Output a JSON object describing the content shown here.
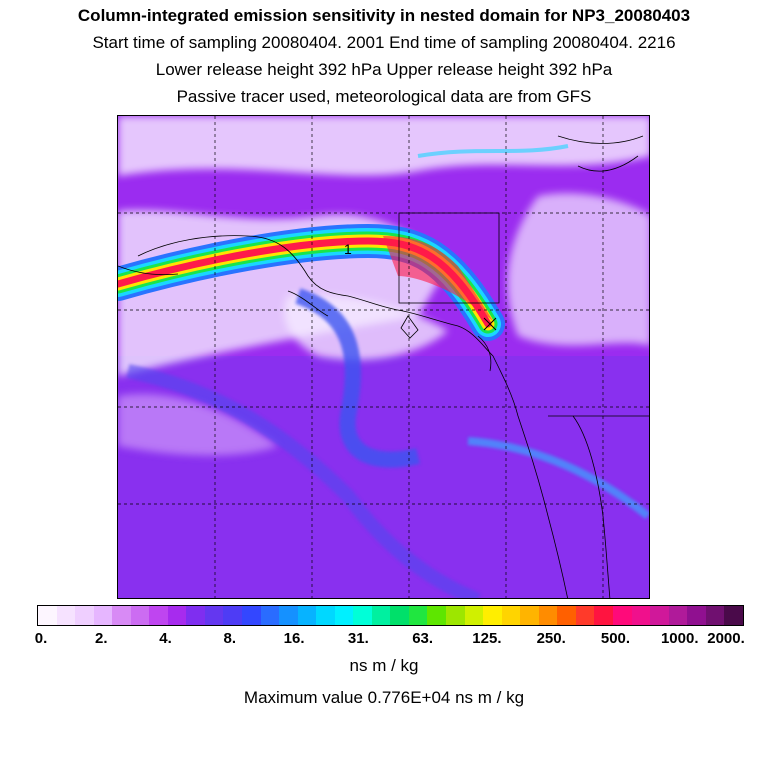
{
  "title": "Column-integrated emission sensitivity in nested domain for NP3_20080403",
  "line_sampling": "Start time of sampling 20080404.  2001      End time of sampling 20080404.  2216",
  "line_release": "Lower release height  392 hPa        Upper release height  392 hPa",
  "line_tracer": "Passive tracer used, meteorological data are from GFS",
  "map": {
    "marker_label": "1",
    "colors": {
      "background": "#9b2cf0",
      "sea_light": "#f4e8ff",
      "plume_red": "#ff1a4a",
      "plume_yellow": "#ffe400",
      "plume_green": "#19e54c",
      "plume_cyan": "#1ad7ff",
      "plume_blue": "#2a73ff",
      "trail_blue": "#3d55f0",
      "coast": "#000000"
    }
  },
  "colorbar": {
    "colors": [
      "#fdf6ff",
      "#f6e2ff",
      "#efcfff",
      "#e6b6ff",
      "#d88af5",
      "#cc6cf2",
      "#bf45f0",
      "#a72bee",
      "#7f2ef0",
      "#6437f0",
      "#4e3cf5",
      "#3347ff",
      "#2a6cff",
      "#1591ff",
      "#07b3ff",
      "#00d8ff",
      "#00f0ff",
      "#00ffd8",
      "#00f0a0",
      "#00e06a",
      "#20e640",
      "#5ee600",
      "#9de600",
      "#d0f000",
      "#ffee00",
      "#ffd400",
      "#ffb400",
      "#ff8c00",
      "#ff6000",
      "#ff3a2a",
      "#ff1440",
      "#ff0a7a",
      "#f0108c",
      "#d0189a",
      "#b01a9a",
      "#901090",
      "#701070",
      "#4a0a4a"
    ],
    "ticks": [
      "0.",
      "2.",
      "4.",
      "8.",
      "16.",
      "31.",
      "63.",
      "125.",
      "250.",
      "500.",
      "1000.",
      "2000."
    ]
  },
  "units": "ns m / kg",
  "max_value": "Maximum value  0.776E+04 ns m / kg"
}
